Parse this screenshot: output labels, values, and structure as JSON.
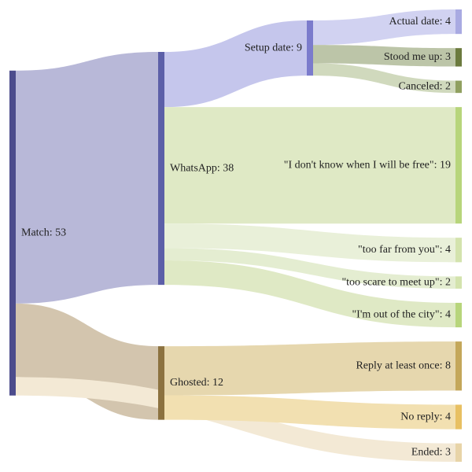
{
  "chart_data": {
    "type": "sankey",
    "nodes": [
      {
        "label": "Match: 53",
        "value": 53,
        "color": "#4c4c8c"
      },
      {
        "label": "WhatsApp: 38",
        "value": 38,
        "color": "#5c5fa8"
      },
      {
        "label": "Ghosted: 12",
        "value": 12,
        "color": "#8c7240"
      },
      {
        "label": "Setup date: 9",
        "value": 9,
        "color": "#7b7bcc"
      },
      {
        "label": "Actual date: 4",
        "value": 4,
        "color": "#a9aae2"
      },
      {
        "label": "Stood me up: 3",
        "value": 3,
        "color": "#6b7a3e"
      },
      {
        "label": "Canceled: 2",
        "value": 2,
        "color": "#90a060"
      },
      {
        "label": "\"I don't know when I will be free\": 19",
        "value": 19,
        "color": "#b7d57b"
      },
      {
        "label": "\"too far from you\": 4",
        "value": 4,
        "color": "#d3e3ad"
      },
      {
        "label": "\"too scare to meet up\": 2",
        "value": 2,
        "color": "#d3e3ad"
      },
      {
        "label": "\"I'm out of the city\": 4",
        "value": 4,
        "color": "#b7d57b"
      },
      {
        "label": "Reply at least once: 8",
        "value": 8,
        "color": "#c4a75a"
      },
      {
        "label": "No reply: 4",
        "value": 4,
        "color": "#e8c062"
      },
      {
        "label": "Ended: 3",
        "value": 3,
        "color": "#e8d4a8"
      }
    ],
    "links": [
      {
        "source": 0,
        "target": 1,
        "value": 38,
        "color": "#b8b8d8"
      },
      {
        "source": 0,
        "target": 2,
        "value": 12,
        "color": "#d3c5ae"
      },
      {
        "source": 0,
        "target": 13,
        "value": 3,
        "color": "#f3e9d5"
      },
      {
        "source": 1,
        "target": 3,
        "value": 9,
        "color": "#c5c6ec"
      },
      {
        "source": 1,
        "target": 7,
        "value": 19,
        "color": "#dfe9c5"
      },
      {
        "source": 1,
        "target": 8,
        "value": 4,
        "color": "#e9f0d9"
      },
      {
        "source": 1,
        "target": 9,
        "value": 2,
        "color": "#e4edd1"
      },
      {
        "source": 1,
        "target": 10,
        "value": 4,
        "color": "#dfe9c5"
      },
      {
        "source": 2,
        "target": 11,
        "value": 8,
        "color": "#e6d7ae"
      },
      {
        "source": 2,
        "target": 12,
        "value": 4,
        "color": "#f2e0b1"
      },
      {
        "source": 3,
        "target": 4,
        "value": 4,
        "color": "#d1d2f1"
      },
      {
        "source": 3,
        "target": 5,
        "value": 3,
        "color": "#bcc5a8"
      },
      {
        "source": 3,
        "target": 6,
        "value": 2,
        "color": "#d0d9bd"
      }
    ]
  }
}
